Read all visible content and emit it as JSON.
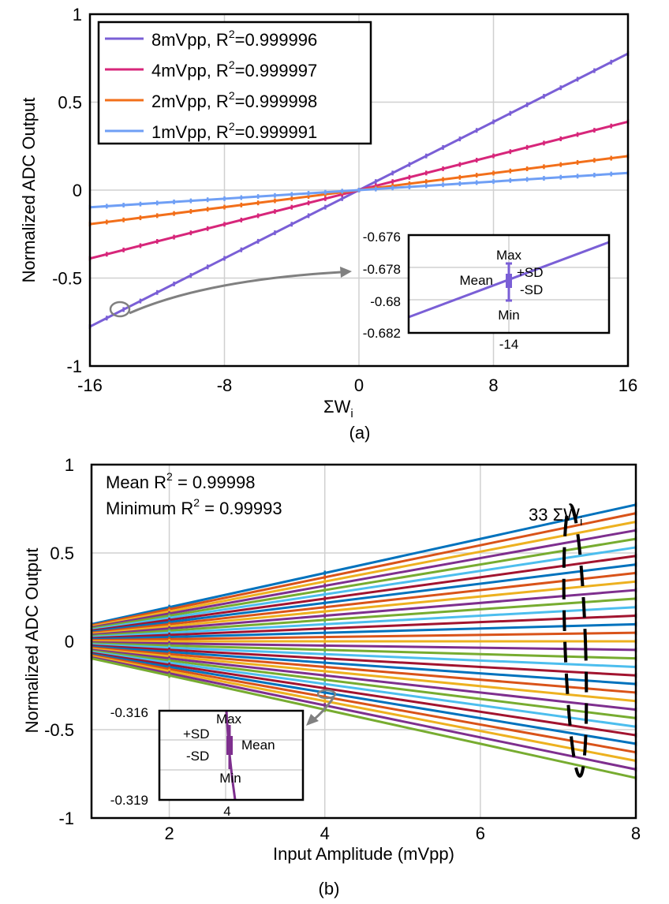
{
  "chart_data": [
    {
      "type": "line",
      "caption": "(a)",
      "xlabel": "ΣW",
      "xlabel_sub": "i",
      "ylabel": "Normalized ADC Output",
      "xlim": [
        -16,
        16
      ],
      "ylim": [
        -1,
        1
      ],
      "xticks": [
        "-16",
        "-8",
        "0",
        "8",
        "16"
      ],
      "yticks": [
        "1",
        "0.5",
        "0",
        "-0.5",
        "-1"
      ],
      "grid": true,
      "legend_position": "top-left",
      "series": [
        {
          "name": "8mVpp",
          "r2_label": "R",
          "r2_sup": "2",
          "r2_value": "=0.999996",
          "color": "#7a5fd6",
          "slope": 0.0485
        },
        {
          "name": "4mVpp",
          "r2_label": "R",
          "r2_sup": "2",
          "r2_value": "=0.999997",
          "color": "#d7267a",
          "slope": 0.0243
        },
        {
          "name": "2mVpp",
          "r2_label": "R",
          "r2_sup": "2",
          "r2_value": "=0.999998",
          "color": "#f26f1a",
          "slope": 0.0121
        },
        {
          "name": "1mVpp",
          "r2_label": "R",
          "r2_sup": "2",
          "r2_value": "=0.999991",
          "color": "#6f9ff5",
          "slope": 0.0061
        }
      ],
      "inset": {
        "xtick": "-14",
        "yticks": [
          "-0.676",
          "-0.678",
          "-0.68",
          "-0.682"
        ],
        "ylim": [
          -0.682,
          -0.676
        ],
        "labels": {
          "max": "Max",
          "min": "Min",
          "mean": "Mean",
          "plus_sd": "+SD",
          "minus_sd": "-SD"
        }
      }
    },
    {
      "type": "line",
      "caption": "(b)",
      "xlabel": "Input Amplitude (mVpp)",
      "ylabel": "Normalized ADC Output",
      "xlim": [
        1,
        8
      ],
      "ylim": [
        -1,
        1
      ],
      "xticks": [
        "2",
        "4",
        "6",
        "8"
      ],
      "yticks": [
        "1",
        "0.5",
        "0",
        "-0.5",
        "-1"
      ],
      "grid": true,
      "series_count": 33,
      "slope_per_mVpp_per_weight": 0.00604,
      "annotations": {
        "mean_r2": {
          "prefix": "Mean R",
          "sup": "2",
          "value": " = 0.99998"
        },
        "min_r2": {
          "prefix": "Minimum R",
          "sup": "2",
          "value": " = 0.99993"
        },
        "count_label": {
          "prefix": "33 ΣW",
          "sub": "i"
        }
      },
      "colors": [
        "#0072bd",
        "#d95319",
        "#edb120",
        "#7e2f8e",
        "#77ac30",
        "#4dbeee",
        "#a2142f"
      ],
      "inset": {
        "xtick": "4",
        "yticks": [
          "-0.316",
          "-0.319"
        ],
        "labels": {
          "max": "Max",
          "min": "Min",
          "mean": "Mean",
          "plus_sd": "+SD",
          "minus_sd": "-SD"
        }
      }
    }
  ]
}
